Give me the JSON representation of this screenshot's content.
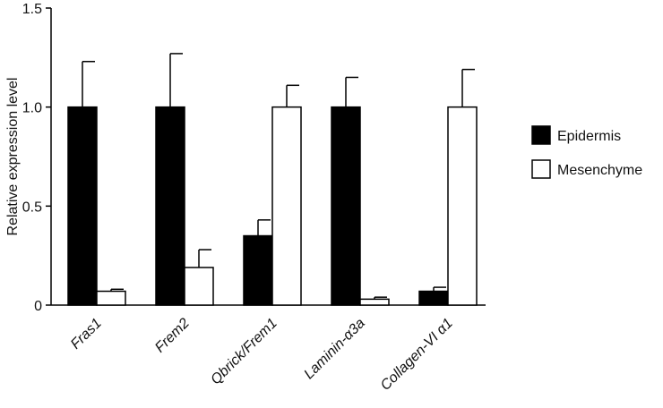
{
  "chart_data": {
    "type": "bar",
    "title": "",
    "xlabel": "",
    "ylabel": "Relative expression level",
    "ylim": [
      0,
      1.5
    ],
    "yticks": [
      0,
      0.5,
      1.0,
      1.5
    ],
    "ytick_labels": [
      "0",
      "0.5",
      "1.0",
      "1.5"
    ],
    "categories": [
      "Fras1",
      "Frem2",
      "Qbrick/Frem1",
      "Laminin-α3a",
      "Collagen-VI α1"
    ],
    "series": [
      {
        "name": "Epidermis",
        "color": "#000000",
        "values": [
          1.0,
          1.0,
          0.35,
          1.0,
          0.07
        ],
        "errors": [
          0.23,
          0.27,
          0.08,
          0.15,
          0.02
        ]
      },
      {
        "name": "Mesenchyme",
        "color": "#ffffff",
        "values": [
          0.07,
          0.19,
          1.0,
          0.03,
          1.0
        ],
        "errors": [
          0.01,
          0.09,
          0.11,
          0.01,
          0.19
        ]
      }
    ],
    "legend_position": "right",
    "grid": false
  }
}
